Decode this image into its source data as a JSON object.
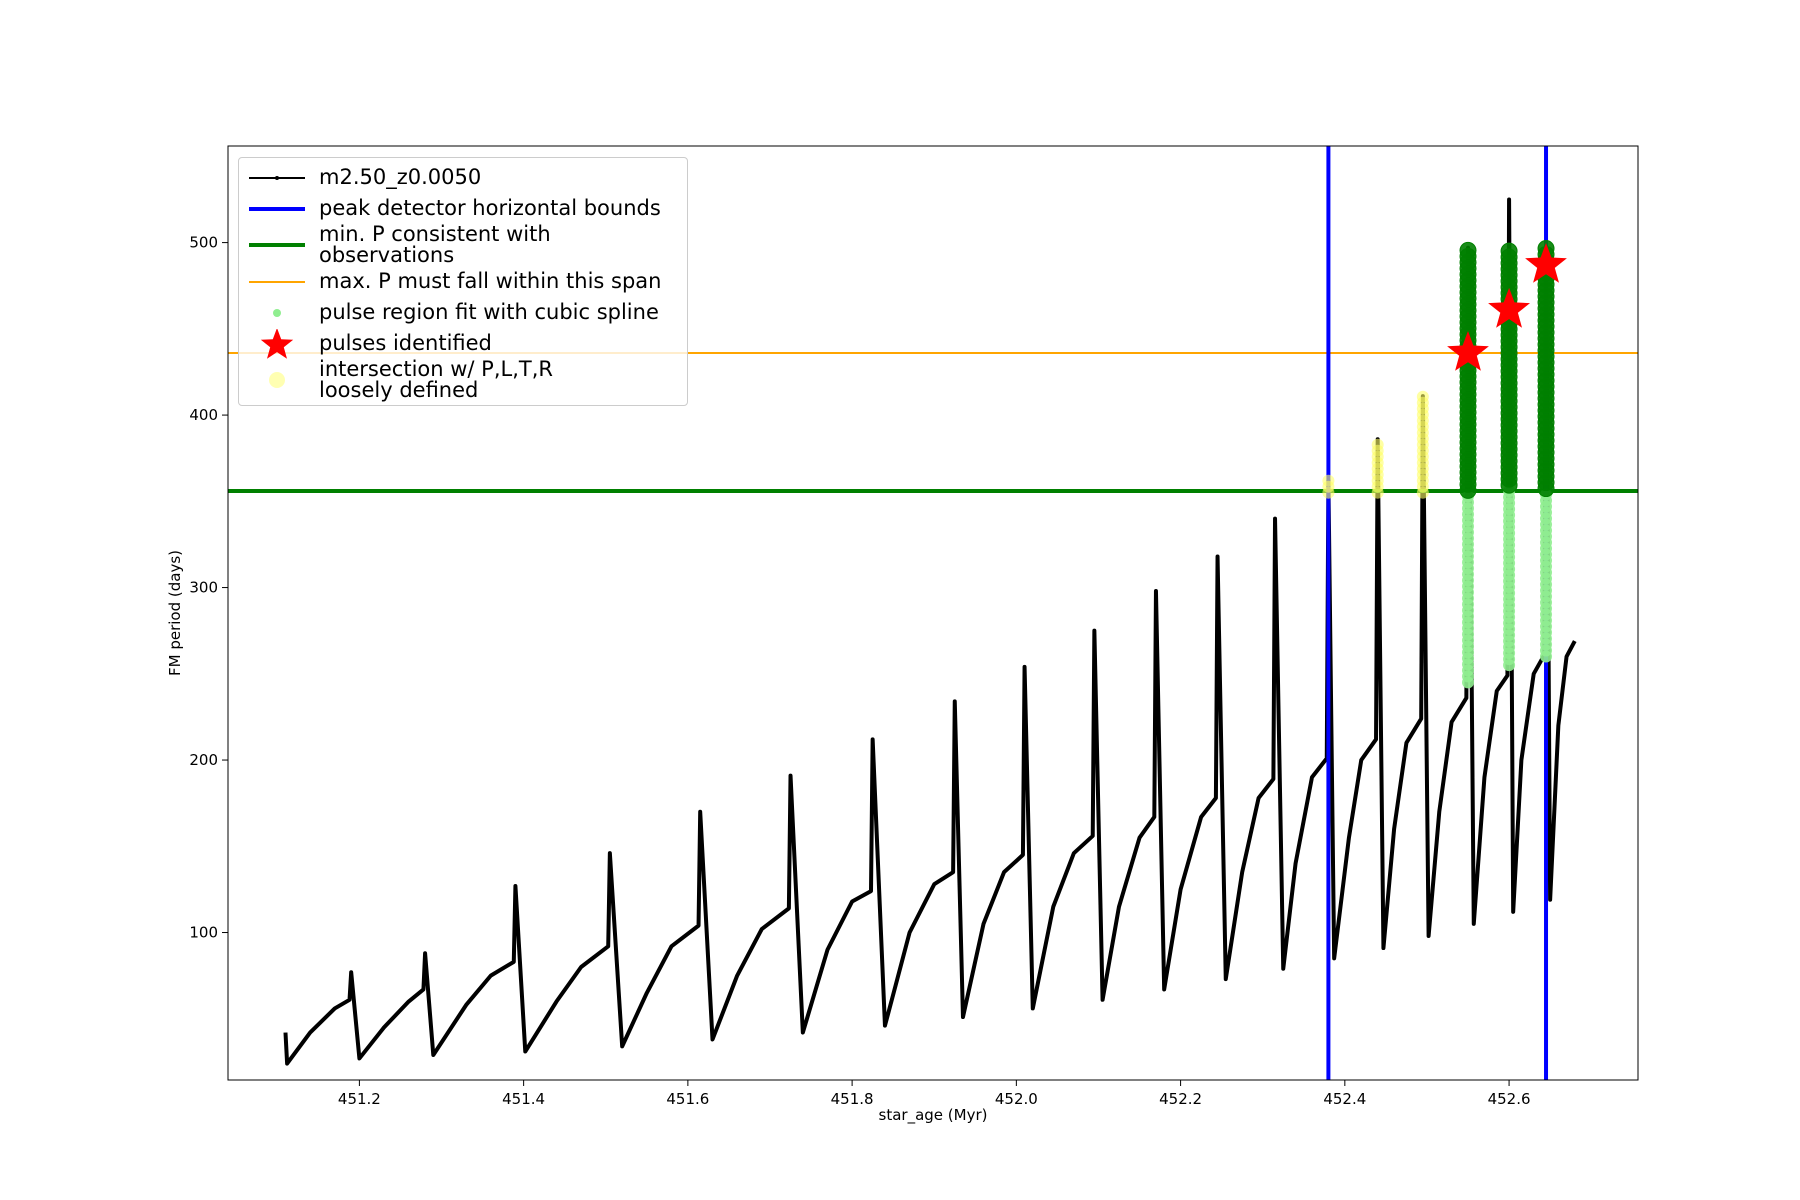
{
  "chart_data": {
    "type": "line",
    "xlabel": "star_age (Myr)",
    "ylabel": "FM period (days)",
    "xlim": [
      451.04,
      452.757
    ],
    "ylim": [
      14.5,
      556
    ],
    "xticks": [
      451.2,
      451.4,
      451.6,
      451.8,
      {
        "value": 452,
        "label": "452.0"
      },
      452.2,
      452.4,
      452.6
    ],
    "yticks": [
      100,
      200,
      300,
      400,
      500
    ],
    "legend": "upper left",
    "series": [
      {
        "name": "m2.50_z0.0050",
        "type": "line",
        "color": "#000000",
        "x": [
          451.11,
          451.112,
          451.14,
          451.17,
          451.188,
          451.19,
          451.2,
          451.23,
          451.26,
          451.278,
          451.28,
          451.29,
          451.33,
          451.36,
          451.388,
          451.39,
          451.402,
          451.44,
          451.47,
          451.503,
          451.505,
          451.52,
          451.55,
          451.58,
          451.613,
          451.615,
          451.63,
          451.66,
          451.69,
          451.723,
          451.725,
          451.74,
          451.77,
          451.8,
          451.823,
          451.825,
          451.84,
          451.87,
          451.9,
          451.923,
          451.925,
          451.935,
          451.96,
          451.985,
          452.008,
          452.01,
          452.02,
          452.045,
          452.07,
          452.093,
          452.095,
          452.105,
          452.125,
          452.15,
          452.168,
          452.17,
          452.18,
          452.2,
          452.225,
          452.243,
          452.245,
          452.255,
          452.275,
          452.295,
          452.313,
          452.315,
          452.325,
          452.34,
          452.36,
          452.378,
          452.38,
          452.387,
          452.405,
          452.42,
          452.438,
          452.44,
          452.447,
          452.46,
          452.475,
          452.493,
          452.495,
          452.502,
          452.515,
          452.53,
          452.548,
          452.55,
          452.557,
          452.57,
          452.585,
          452.598,
          452.6,
          452.605,
          452.615,
          452.63,
          452.643,
          452.645,
          452.65,
          452.66,
          452.67,
          452.68
        ],
        "values": [
          42,
          24,
          42,
          56,
          61,
          77,
          27,
          45,
          60,
          67,
          88,
          29,
          58,
          75,
          83,
          127,
          31,
          60,
          80,
          92,
          146,
          34,
          65,
          92,
          104,
          170,
          38,
          75,
          102,
          114,
          191,
          42,
          90,
          118,
          124,
          212,
          46,
          100,
          128,
          135,
          234,
          51,
          105,
          135,
          145,
          254,
          56,
          115,
          146,
          156,
          275,
          61,
          115,
          155,
          167,
          298,
          67,
          125,
          167,
          178,
          318,
          73,
          135,
          178,
          189,
          340,
          79,
          140,
          190,
          201,
          362,
          85,
          155,
          200,
          212,
          386,
          91,
          160,
          210,
          224,
          411,
          98,
          170,
          222,
          236,
          497,
          105,
          190,
          240,
          249,
          525,
          112,
          200,
          250,
          261,
          497,
          119,
          220,
          260,
          269
        ]
      },
      {
        "name": "peak detector horizontal bounds",
        "type": "vline",
        "color": "#0000ff",
        "x": [
          452.38,
          452.645
        ]
      },
      {
        "name": "min. P consistent with observations",
        "type": "hline",
        "color": "#008000",
        "values": [
          356
        ]
      },
      {
        "name": "max. P must fall within this span",
        "type": "hline",
        "color": "#ffa500",
        "values": [
          436
        ]
      },
      {
        "name": "pulse region fit with cubic spline",
        "type": "range_scatter",
        "color": "#90ee90",
        "edge_color": "#008000",
        "x": [
          452.55,
          452.6,
          452.645
        ],
        "low": [
          245,
          255,
          260
        ],
        "high": [
          497,
          497,
          497
        ]
      },
      {
        "name": "pulses identified",
        "type": "star",
        "color": "#ff0000",
        "x": [
          452.55,
          452.6,
          452.645
        ],
        "values": [
          436,
          461,
          487
        ]
      },
      {
        "name": "intersection w/ P,L,T,R\nloosely defined",
        "type": "range_scatter",
        "color": "#ffff66",
        "x": [
          452.38,
          452.44,
          452.495
        ],
        "low": [
          355,
          355,
          355
        ],
        "high": [
          362,
          386,
          411
        ]
      }
    ]
  }
}
